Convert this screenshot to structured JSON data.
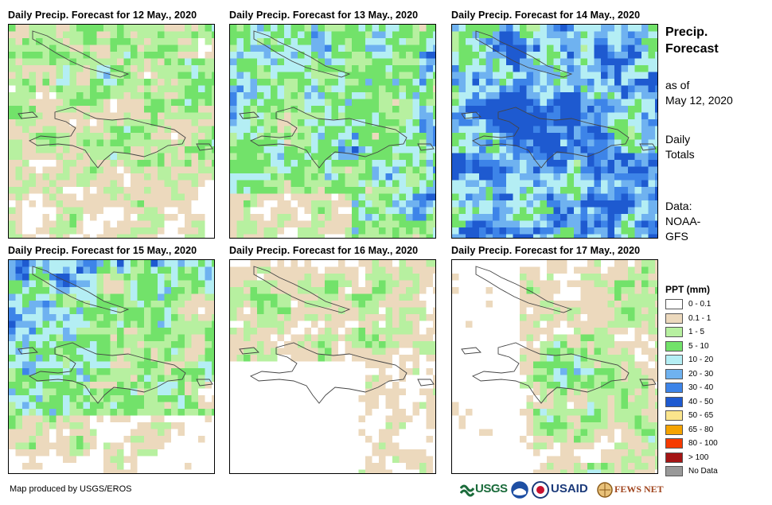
{
  "panels": [
    {
      "title": "Daily Precip. Forecast for 12 May., 2020",
      "seed": 11,
      "profile": "day12"
    },
    {
      "title": "Daily Precip. Forecast for 13 May., 2020",
      "seed": 23,
      "profile": "day13"
    },
    {
      "title": "Daily Precip. Forecast for 14 May., 2020",
      "seed": 37,
      "profile": "day14"
    },
    {
      "title": "Daily Precip. Forecast for 15 May., 2020",
      "seed": 41,
      "profile": "day15"
    },
    {
      "title": "Daily Precip. Forecast for 16 May., 2020",
      "seed": 53,
      "profile": "day16"
    },
    {
      "title": "Daily Precip. Forecast for 17 May., 2020",
      "seed": 67,
      "profile": "day17"
    }
  ],
  "side": {
    "title_line1": "Precip.",
    "title_line2": "Forecast",
    "asof_line1": "as of",
    "asof_line2": "May 12, 2020",
    "daily_line1": "Daily",
    "daily_line2": "Totals",
    "data_line1": "Data:",
    "data_line2": "NOAA-",
    "data_line3": "GFS"
  },
  "legend": {
    "title": "PPT (mm)",
    "items": [
      {
        "label": "0 - 0.1",
        "color": "#ffffff"
      },
      {
        "label": "0.1 - 1",
        "color": "#ecd9bd"
      },
      {
        "label": "1 - 5",
        "color": "#b7f0a0"
      },
      {
        "label": "5 - 10",
        "color": "#72e26a"
      },
      {
        "label": "10 - 20",
        "color": "#b4eef4"
      },
      {
        "label": "20 - 30",
        "color": "#6fb2f0"
      },
      {
        "label": "30 - 40",
        "color": "#3d84e8"
      },
      {
        "label": "40 - 50",
        "color": "#1e5ad0"
      },
      {
        "label": "50 - 65",
        "color": "#fbe58c"
      },
      {
        "label": "65 - 80",
        "color": "#f5a300"
      },
      {
        "label": "80 - 100",
        "color": "#f53a00"
      },
      {
        "label": "> 100",
        "color": "#a41515"
      },
      {
        "label": "No Data",
        "color": "#999999"
      }
    ]
  },
  "credit": "Map produced by USGS/EROS",
  "logos": {
    "usgs": "USGS",
    "usaid": "USAID",
    "fewsnet": "FEWS NET"
  }
}
